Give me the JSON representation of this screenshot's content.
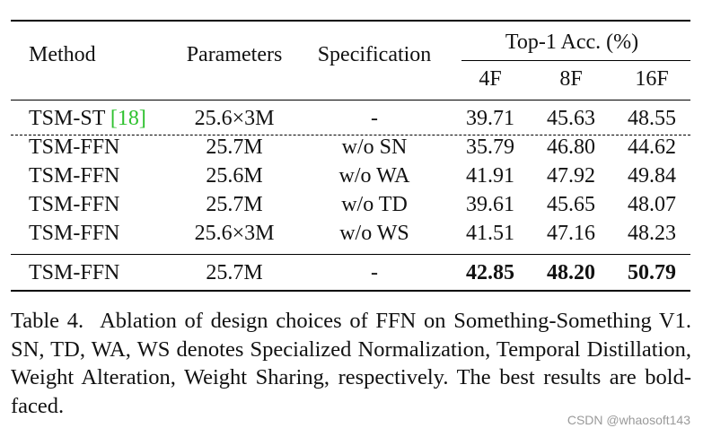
{
  "table": {
    "headers": {
      "method": "Method",
      "parameters": "Parameters",
      "specification": "Specification",
      "top1": "Top-1 Acc. (%)",
      "sub": [
        "4F",
        "8F",
        "16F"
      ]
    },
    "rows": [
      {
        "method": "TSM-ST ",
        "cite": "[18]",
        "params": "25.6×3M",
        "spec": "-",
        "v4": "39.71",
        "v8": "45.63",
        "v16": "48.55"
      },
      {
        "method": "TSM-FFN",
        "params": "25.7M",
        "spec": "w/o SN",
        "v4": "35.79",
        "v8": "46.80",
        "v16": "44.62"
      },
      {
        "method": "TSM-FFN",
        "params": "25.6M",
        "spec": "w/o WA",
        "v4": "41.91",
        "v8": "47.92",
        "v16": "49.84"
      },
      {
        "method": "TSM-FFN",
        "params": "25.7M",
        "spec": "w/o TD",
        "v4": "39.61",
        "v8": "45.65",
        "v16": "48.07"
      },
      {
        "method": "TSM-FFN",
        "params": "25.6×3M",
        "spec": "w/o WS",
        "v4": "41.51",
        "v8": "47.16",
        "v16": "48.23"
      },
      {
        "method": "TSM-FFN",
        "params": "25.7M",
        "spec": "-",
        "v4": "42.85",
        "v8": "48.20",
        "v16": "50.79"
      }
    ]
  },
  "caption": {
    "label": "Table 4.",
    "text": "Ablation of design choices of FFN on Something-Something V1. SN, TD, WA, WS denotes Specialized Normalization, Temporal Distillation, Weight Alteration, Weight Sharing, respectively. The best results are bold-faced."
  },
  "watermark": "CSDN @whaosoft143"
}
